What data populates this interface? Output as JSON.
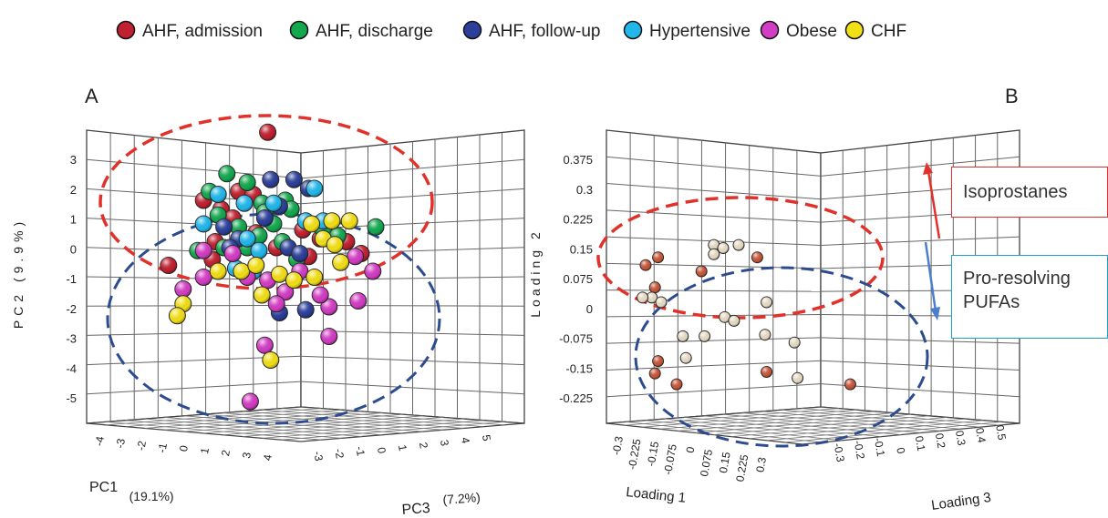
{
  "legend": [
    {
      "label": "AHF, admission",
      "color": "#c0202f"
    },
    {
      "label": "AHF, discharge",
      "color": "#12a84e"
    },
    {
      "label": "AHF, follow-up",
      "color": "#2b3f9a"
    },
    {
      "label": "Hypertensive",
      "color": "#22b7ea"
    },
    {
      "label": "Obese",
      "color": "#d33cc4"
    },
    {
      "label": "CHF",
      "color": "#f2df16"
    }
  ],
  "chart_data": [
    {
      "panel_label": "A",
      "type": "scatter",
      "xlabel": "PC1",
      "xlabel_pct": "(19.1%)",
      "ylabel": "PC2 (9.9%)",
      "zlabel": "PC3",
      "zlabel_pct": "(7.2%)",
      "x_ticks": [
        "-4",
        "-3",
        "-2",
        "-1",
        "0",
        "1",
        "2",
        "3",
        "4"
      ],
      "y_ticks": [
        "3",
        "2",
        "1",
        "0",
        "-1",
        "-2",
        "-3",
        "-4",
        "-5"
      ],
      "z_ticks": [
        "-3",
        "-2",
        "-1",
        "0",
        "1",
        "2",
        "3",
        "4",
        "5"
      ],
      "grid": true,
      "series": [
        {
          "name": "AHF, admission",
          "points": [
            [
              -0.2,
              3.9
            ],
            [
              -2.4,
              1.6
            ],
            [
              -1.2,
              1.9
            ],
            [
              -0.7,
              1.8
            ],
            [
              -1.8,
              1.3
            ],
            [
              -1.4,
              1.0
            ],
            [
              -2.0,
              0.2
            ],
            [
              -0.6,
              0.5
            ],
            [
              1.6,
              0.3
            ],
            [
              1.0,
              0.6
            ],
            [
              2.5,
              0.2
            ],
            [
              3.0,
              -0.2
            ],
            [
              -3.6,
              -0.6
            ],
            [
              -2.1,
              -0.4
            ],
            [
              1.2,
              -0.3
            ],
            [
              0.1,
              0.0
            ]
          ]
        },
        {
          "name": "AHF, discharge",
          "points": [
            [
              -1.6,
              2.5
            ],
            [
              -0.9,
              2.2
            ],
            [
              -2.2,
              1.9
            ],
            [
              -0.4,
              1.5
            ],
            [
              0.4,
              1.6
            ],
            [
              -1.9,
              1.1
            ],
            [
              -0.3,
              1.2
            ],
            [
              0.6,
              1.3
            ],
            [
              0.0,
              0.8
            ],
            [
              -1.2,
              0.7
            ],
            [
              -0.5,
              0.4
            ],
            [
              0.3,
              0.2
            ],
            [
              -1.7,
              0.0
            ],
            [
              -0.9,
              0.0
            ],
            [
              1.7,
              0.6
            ],
            [
              2.2,
              0.4
            ],
            [
              3.5,
              0.7
            ],
            [
              -2.6,
              -0.1
            ],
            [
              0.8,
              -0.4
            ]
          ]
        },
        {
          "name": "AHF, follow-up",
          "points": [
            [
              -0.1,
              2.3
            ],
            [
              0.7,
              2.3
            ],
            [
              1.2,
              2.0
            ],
            [
              -0.3,
              1.0
            ],
            [
              0.2,
              1.4
            ],
            [
              -1.7,
              0.7
            ],
            [
              -1.2,
              0.3
            ],
            [
              -1.5,
              0.0
            ],
            [
              0.5,
              0.0
            ],
            [
              0.9,
              -0.2
            ],
            [
              0.2,
              -2.2
            ],
            [
              1.1,
              -2.1
            ]
          ]
        },
        {
          "name": "Hypertensive",
          "points": [
            [
              -1.9,
              1.8
            ],
            [
              1.4,
              2.0
            ],
            [
              -1.0,
              1.5
            ],
            [
              0.0,
              1.5
            ],
            [
              -2.4,
              0.8
            ],
            [
              -0.9,
              0.3
            ],
            [
              1.1,
              0.9
            ],
            [
              1.7,
              0.9
            ],
            [
              -0.5,
              -0.1
            ],
            [
              -1.3,
              -0.7
            ],
            [
              -0.7,
              -0.8
            ]
          ]
        },
        {
          "name": "Obese",
          "points": [
            [
              -2.4,
              -0.1
            ],
            [
              -1.4,
              -0.2
            ],
            [
              2.8,
              -0.3
            ],
            [
              3.4,
              -0.8
            ],
            [
              -3.1,
              -1.4
            ],
            [
              -2.4,
              -1.0
            ],
            [
              -0.9,
              -1.0
            ],
            [
              -0.2,
              -1.1
            ],
            [
              0.4,
              -1.5
            ],
            [
              0.1,
              -1.9
            ],
            [
              1.9,
              -2.0
            ],
            [
              2.9,
              -1.8
            ],
            [
              -0.3,
              -3.3
            ],
            [
              1.9,
              -3.0
            ],
            [
              -0.8,
              -5.2
            ],
            [
              1.6,
              -1.6
            ],
            [
              0.9,
              -0.8
            ]
          ]
        },
        {
          "name": "CHF",
          "points": [
            [
              1.3,
              0.8
            ],
            [
              2.0,
              0.9
            ],
            [
              2.6,
              0.9
            ],
            [
              1.7,
              0.3
            ],
            [
              2.1,
              0.1
            ],
            [
              2.3,
              -0.5
            ],
            [
              -1.9,
              -0.8
            ],
            [
              -1.1,
              -0.8
            ],
            [
              -0.6,
              -0.6
            ],
            [
              0.2,
              -0.9
            ],
            [
              0.7,
              -1.1
            ],
            [
              1.4,
              -1.0
            ],
            [
              -0.4,
              -1.6
            ],
            [
              -3.1,
              -1.9
            ],
            [
              -3.3,
              -2.3
            ],
            [
              -0.1,
              -3.8
            ]
          ]
        }
      ],
      "annotations": [
        {
          "shape": "ellipse",
          "style": "dashed",
          "color": "#e0322b"
        },
        {
          "shape": "ellipse",
          "style": "dashed",
          "color": "#2d4c8e"
        }
      ]
    },
    {
      "panel_label": "B",
      "type": "scatter",
      "xlabel": "Loading 1",
      "ylabel": "Loading 2",
      "zlabel": "Loading 3",
      "x_ticks": [
        "-0.3",
        "-0.225",
        "-0.15",
        "-0.075",
        "0",
        "0.075",
        "0.15",
        "0.225",
        "0.3"
      ],
      "y_ticks": [
        "0.375",
        "0.3",
        "0.225",
        "0.15",
        "0.075",
        "0",
        "-0.075",
        "-0.15",
        "-0.225"
      ],
      "z_ticks": [
        "-0.3",
        "-0.2",
        "-0.1",
        "0",
        "0.1",
        "0.2",
        "0.3",
        "0.4",
        "0.5"
      ],
      "grid": true,
      "series": [
        {
          "name": "Isoprostanes",
          "points": [
            [
              -0.26,
              0.145
            ],
            [
              -0.3,
              0.12
            ],
            [
              -0.27,
              0.048
            ],
            [
              -0.12,
              0.1
            ],
            [
              0.06,
              0.145
            ],
            [
              -0.26,
              -0.19
            ],
            [
              -0.27,
              -0.23
            ],
            [
              -0.2,
              -0.265
            ],
            [
              0.09,
              -0.225
            ],
            [
              0.36,
              -0.265
            ]
          ]
        },
        {
          "name": "Pro-resolving PUFAs",
          "points": [
            [
              -0.28,
              0.015
            ],
            [
              -0.31,
              0.015
            ],
            [
              -0.25,
              0.0
            ],
            [
              -0.08,
              0.185
            ],
            [
              -0.05,
              0.175
            ],
            [
              0.0,
              0.185
            ],
            [
              -0.08,
              0.155
            ],
            [
              -0.045,
              -0.048
            ],
            [
              -0.015,
              -0.06
            ],
            [
              0.085,
              -0.105
            ],
            [
              0.18,
              -0.13
            ],
            [
              -0.18,
              -0.11
            ],
            [
              -0.11,
              -0.11
            ],
            [
              -0.17,
              -0.18
            ],
            [
              0.09,
              0.0
            ],
            [
              0.19,
              -0.245
            ]
          ]
        }
      ],
      "annotations": [
        {
          "label": "Isoprostanes",
          "shape": "ellipse",
          "style": "dashed",
          "color": "#e0322b"
        },
        {
          "label": "Pro-resolving PUFAs",
          "shape": "ellipse",
          "style": "dashed",
          "color": "#2d4c8e"
        }
      ]
    }
  ]
}
